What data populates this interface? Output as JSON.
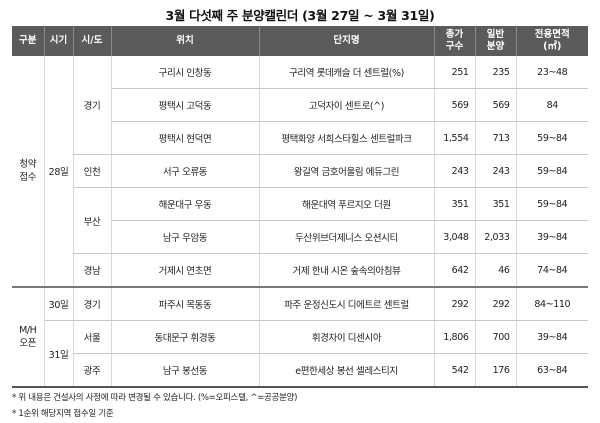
{
  "title": "3월 다섯째 주 분양캘린더 (3월 27일 ~ 3월 31일)",
  "headers": {
    "gubun": "구분",
    "sigi": "시기",
    "sido": "시/도",
    "location": "위치",
    "complex": "단지명",
    "total_line1": "총가",
    "total_line2": "구수",
    "general_line1": "일반",
    "general_line2": "분양",
    "area_line1": "전용면적",
    "area_line2": "(㎡)"
  },
  "groups": {
    "subscription": "청약\n접수",
    "mh": "M/H\n오픈"
  },
  "dates": {
    "d28": "28일",
    "d30": "30일",
    "d31": "31일"
  },
  "regions": {
    "gyeonggi": "경기",
    "incheon": "인천",
    "busan": "부산",
    "gyeongnam": "경남",
    "gyeonggi2": "경기",
    "seoul": "서울",
    "gwangju": "광주"
  },
  "rows": [
    {
      "location": "구리시 인창동",
      "complex": "구리역 롯데캐슬 더 센트럴(%)",
      "total": "251",
      "general": "235",
      "area": "23~48"
    },
    {
      "location": "평택시 고덕동",
      "complex": "고덕자이 센트로(^)",
      "total": "569",
      "general": "569",
      "area": "84"
    },
    {
      "location": "평택시 현덕면",
      "complex": "평택화양 서희스타힐스 센트럴파크",
      "total": "1,554",
      "general": "713",
      "area": "59~84"
    },
    {
      "location": "서구 오류동",
      "complex": "왕길역 금호어울림 에듀그린",
      "total": "243",
      "general": "243",
      "area": "59~84"
    },
    {
      "location": "해운대구 우동",
      "complex": "해운대역 푸르지오 더원",
      "total": "351",
      "general": "351",
      "area": "59~84"
    },
    {
      "location": "남구 우암동",
      "complex": "두산위브더제니스 오션시티",
      "total": "3,048",
      "general": "2,033",
      "area": "39~84"
    },
    {
      "location": "거제시 연초면",
      "complex": "거제 한내 시온 숲속의아침뷰",
      "total": "642",
      "general": "46",
      "area": "74~84"
    },
    {
      "location": "파주시 목동동",
      "complex": "파주 운정신도시 디에트르 센트럴",
      "total": "292",
      "general": "292",
      "area": "84~110"
    },
    {
      "location": "동대문구 휘경동",
      "complex": "휘경자이 디센시아",
      "total": "1,806",
      "general": "700",
      "area": "39~84"
    },
    {
      "location": "남구 봉선동",
      "complex": "e편한세상 봉선 셀레스티지",
      "total": "542",
      "general": "176",
      "area": "63~84"
    }
  ],
  "notes": [
    "* 위 내용은 건설사의 사정에 따라 변경될 수 있습니다. (%=오피스텔, ^=공공분양)",
    "* 1순위 해당지역 접수일 기준"
  ]
}
